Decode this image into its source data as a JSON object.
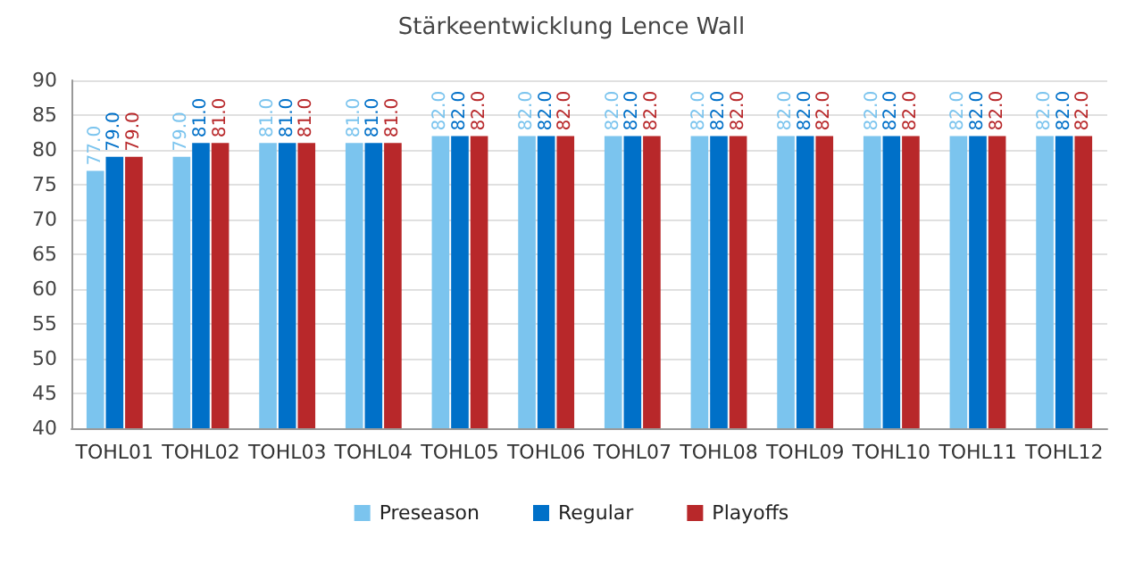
{
  "chart_data": {
    "type": "bar",
    "title": "Stärkeentwicklung Lence Wall",
    "categories": [
      "TOHL01",
      "TOHL02",
      "TOHL03",
      "TOHL04",
      "TOHL05",
      "TOHL06",
      "TOHL07",
      "TOHL08",
      "TOHL09",
      "TOHL10",
      "TOHL11",
      "TOHL12"
    ],
    "series": [
      {
        "name": "Preseason",
        "color": "#7bc4ee",
        "values": [
          77,
          79,
          81,
          81,
          82,
          82,
          82,
          82,
          82,
          82,
          82,
          82
        ],
        "value_labels": [
          "77.0",
          "79.0",
          "81.0",
          "81.0",
          "82.0",
          "82.0",
          "82.0",
          "82.0",
          "82.0",
          "82.0",
          "82.0",
          "82.0"
        ]
      },
      {
        "name": "Regular",
        "color": "#0070c8",
        "values": [
          79,
          81,
          81,
          81,
          82,
          82,
          82,
          82,
          82,
          82,
          82,
          82
        ],
        "value_labels": [
          "79.0",
          "81.0",
          "81.0",
          "81.0",
          "82.0",
          "82.0",
          "82.0",
          "82.0",
          "82.0",
          "82.0",
          "82.0",
          "82.0"
        ]
      },
      {
        "name": "Playoffs",
        "color": "#b8282a",
        "values": [
          79,
          81,
          81,
          81,
          82,
          82,
          82,
          82,
          82,
          82,
          82,
          82
        ],
        "value_labels": [
          "79.0",
          "81.0",
          "81.0",
          "81.0",
          "82.0",
          "82.0",
          "82.0",
          "82.0",
          "82.0",
          "82.0",
          "82.0",
          "82.0"
        ]
      }
    ],
    "ylim": [
      40,
      90
    ],
    "yticks": [
      40,
      45,
      50,
      55,
      60,
      65,
      70,
      75,
      80,
      85,
      90
    ],
    "grid": true,
    "legend": "bottom"
  }
}
